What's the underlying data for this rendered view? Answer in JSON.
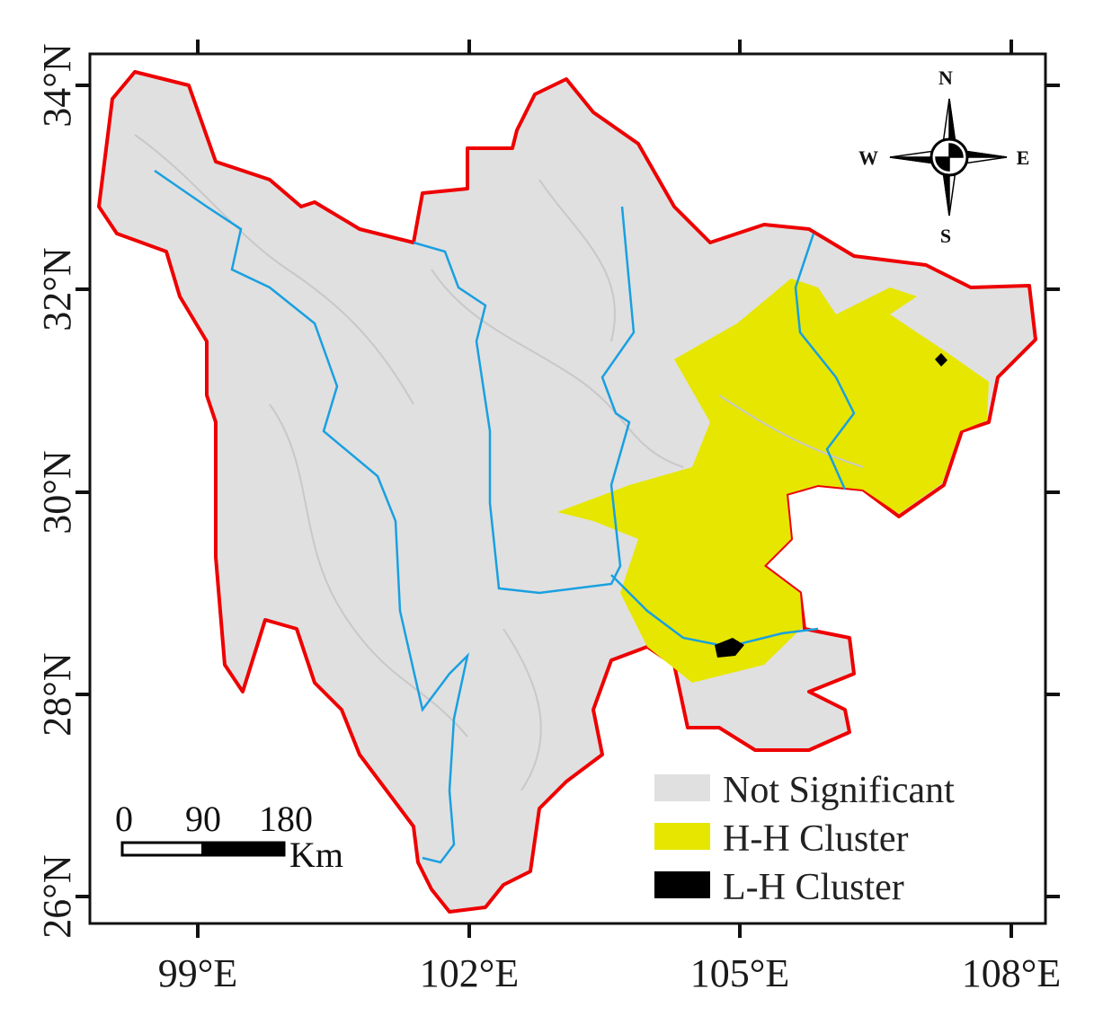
{
  "map": {
    "x_axis_labels": [
      "99°E",
      "102°E",
      "105°E",
      "108°E"
    ],
    "y_axis_labels": [
      "34°N",
      "32°N",
      "30°N",
      "28°N",
      "26°N"
    ],
    "compass": {
      "north": "N",
      "south": "S",
      "west": "W",
      "east": "E"
    },
    "scale_bar": {
      "labels": [
        "0",
        "90",
        "180"
      ],
      "unit": "Km"
    },
    "legend": [
      "Not Significant",
      "H-H Cluster",
      "L-H Cluster"
    ]
  }
}
